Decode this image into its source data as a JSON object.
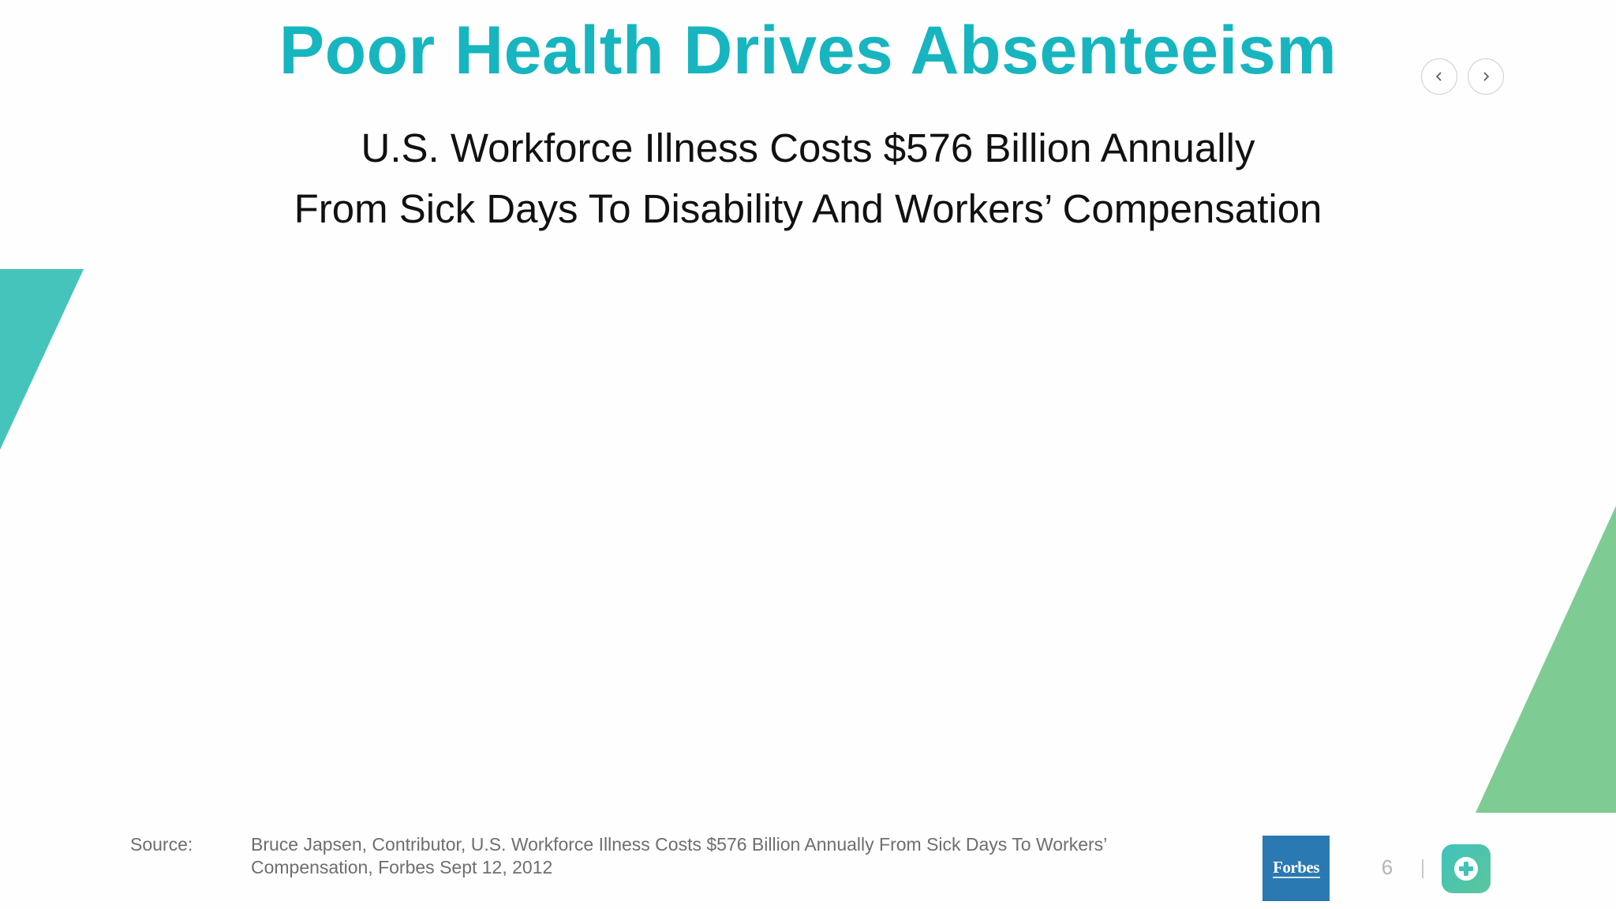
{
  "slide": {
    "title": "Poor Health Drives Absenteeism",
    "subtitle_line1": "U.S. Workforce Illness Costs $576 Billion Annually",
    "subtitle_line2": "From Sick Days To Disability And Workers’ Compensation"
  },
  "navigation": {
    "prev_icon": "chevron-left-icon",
    "next_icon": "chevron-right-icon"
  },
  "footer": {
    "source_label": "Source:",
    "source_line1": "Bruce Japsen, Contributor, U.S. Workforce Illness Costs $576 Billion Annually From Sick Days To Workers’",
    "source_line2": "Compensation, Forbes Sept 12, 2012",
    "logo_text": "Forbes",
    "page_number": "6",
    "app_icon": "medical-plus-icon"
  },
  "colors": {
    "title": "#17b5bf",
    "teal_accent": "#45c4bc",
    "green_accent": "#7fcb94",
    "forbes_blue": "#2a79b3"
  }
}
